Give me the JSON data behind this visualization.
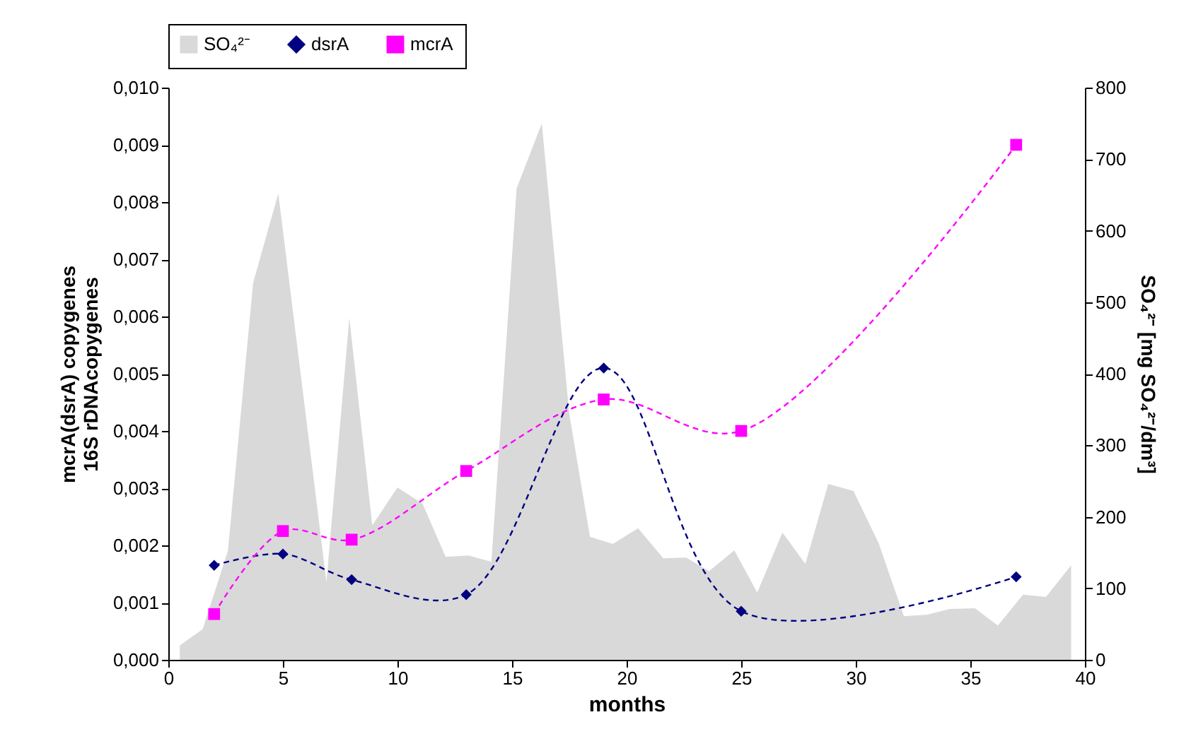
{
  "chart_data": {
    "type": "line",
    "xlabel": "months",
    "ylabel": "mcrA(dsrA) copygenes\n16S rDNAcopygenes",
    "y2label": "SO₄²⁻ [mg SO₄²⁻/dm³]",
    "xlim": [
      0,
      40
    ],
    "xticks": [
      0,
      5,
      10,
      15,
      20,
      25,
      30,
      35,
      40
    ],
    "ylim": [
      0,
      0.01
    ],
    "yticks": [
      {
        "value": 0,
        "label": "0,000"
      },
      {
        "value": 0.001,
        "label": "0,001"
      },
      {
        "value": 0.002,
        "label": "0,002"
      },
      {
        "value": 0.003,
        "label": "0,003"
      },
      {
        "value": 0.004,
        "label": "0,004"
      },
      {
        "value": 0.005,
        "label": "0,005"
      },
      {
        "value": 0.006,
        "label": "0,006"
      },
      {
        "value": 0.007,
        "label": "0,007"
      },
      {
        "value": 0.008,
        "label": "0,008"
      },
      {
        "value": 0.009,
        "label": "0,009"
      },
      {
        "value": 0.01,
        "label": "0,010"
      }
    ],
    "y2lim": [
      0,
      800
    ],
    "y2ticks": [
      0,
      100,
      200,
      300,
      400,
      500,
      600,
      700,
      800
    ],
    "legend": "top",
    "grid": false,
    "line_style": "dashed",
    "series": [
      {
        "name": "SO₄²⁻",
        "type": "area",
        "axis": "y2",
        "color": "#d9d9d9",
        "x": [
          0.5,
          1.5,
          2.6,
          3.7,
          4.8,
          6.9,
          7.9,
          8.9,
          10,
          11.1,
          12.1,
          13.1,
          14.1,
          15.2,
          16.3,
          17.5,
          18.4,
          19.4,
          20.5,
          21.6,
          22.6,
          23.6,
          24.7,
          25.7,
          26.8,
          27.8,
          28.8,
          29.9,
          31,
          32.1,
          33.1,
          34.1,
          35.2,
          36.2,
          37.3,
          38.3,
          39.4
        ],
        "values": [
          20,
          43,
          152,
          527,
          652,
          109,
          478,
          188,
          241,
          218,
          144,
          146,
          137,
          659,
          750,
          343,
          172,
          162,
          184,
          142,
          143,
          124,
          153,
          94,
          178,
          134,
          246,
          236,
          163,
          61,
          63,
          71,
          72,
          48,
          91,
          88,
          132
        ]
      },
      {
        "name": "dsrA",
        "color": "#000080",
        "marker": "diamond",
        "x": [
          2,
          5,
          8,
          13,
          19,
          25,
          37
        ],
        "values": [
          0.00165,
          0.00185,
          0.0014,
          0.00114,
          0.0051,
          0.00085,
          0.00145
        ]
      },
      {
        "name": "mcrA",
        "color": "#ff00ff",
        "marker": "square",
        "x": [
          2,
          5,
          8,
          13,
          19,
          25,
          37
        ],
        "values": [
          0.0008,
          0.00225,
          0.0021,
          0.0033,
          0.00455,
          0.004,
          0.009
        ]
      }
    ]
  }
}
